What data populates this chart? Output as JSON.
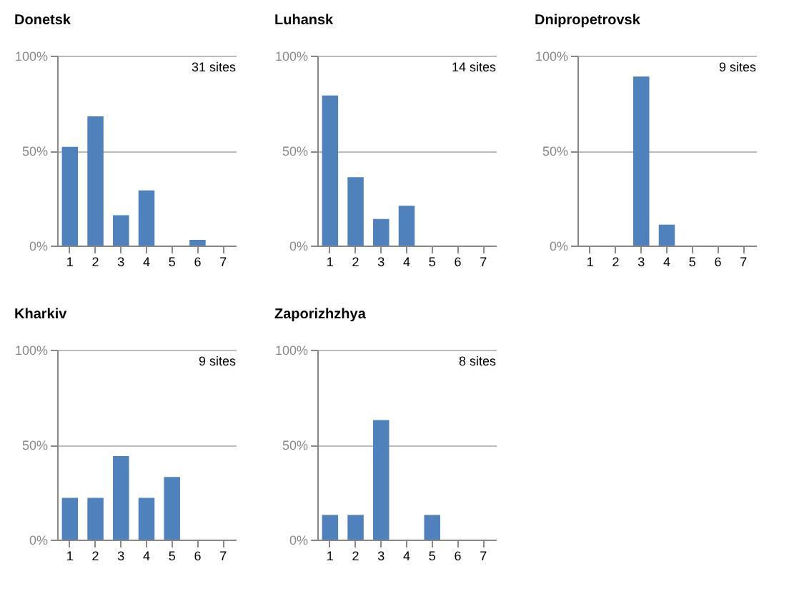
{
  "chart_data": [
    {
      "type": "bar",
      "title": "Donetsk",
      "categories": [
        "1",
        "2",
        "3",
        "4",
        "5",
        "6",
        "7"
      ],
      "values": [
        52,
        68,
        16,
        29,
        0,
        3,
        0
      ],
      "color": "#4f81bd",
      "ylim": [
        0,
        100
      ],
      "yticks": [
        {
          "value": 0,
          "label": "0%"
        },
        {
          "value": 50,
          "label": "50%"
        },
        {
          "value": 100,
          "label": "100%"
        }
      ],
      "grid": "y",
      "annotations": [
        "31 sites"
      ]
    },
    {
      "type": "bar",
      "title": "Luhansk",
      "categories": [
        "1",
        "2",
        "3",
        "4",
        "5",
        "6",
        "7"
      ],
      "values": [
        79,
        36,
        14,
        21,
        0,
        0,
        0
      ],
      "color": "#4f81bd",
      "ylim": [
        0,
        100
      ],
      "yticks": [
        {
          "value": 0,
          "label": "0%"
        },
        {
          "value": 50,
          "label": "50%"
        },
        {
          "value": 100,
          "label": "100%"
        }
      ],
      "grid": "y",
      "annotations": [
        "14 sites"
      ]
    },
    {
      "type": "bar",
      "title": "Dnipropetrovsk",
      "categories": [
        "1",
        "2",
        "3",
        "4",
        "5",
        "6",
        "7"
      ],
      "values": [
        0,
        0,
        89,
        11,
        0,
        0,
        0
      ],
      "color": "#4f81bd",
      "ylim": [
        0,
        100
      ],
      "yticks": [
        {
          "value": 0,
          "label": "0%"
        },
        {
          "value": 50,
          "label": "50%"
        },
        {
          "value": 100,
          "label": "100%"
        }
      ],
      "grid": "y",
      "annotations": [
        "9 sites"
      ]
    },
    {
      "type": "bar",
      "title": "Kharkiv",
      "categories": [
        "1",
        "2",
        "3",
        "4",
        "5",
        "6",
        "7"
      ],
      "values": [
        22,
        22,
        44,
        22,
        33,
        0,
        0
      ],
      "color": "#4f81bd",
      "ylim": [
        0,
        100
      ],
      "yticks": [
        {
          "value": 0,
          "label": "0%"
        },
        {
          "value": 50,
          "label": "50%"
        },
        {
          "value": 100,
          "label": "100%"
        }
      ],
      "grid": "y",
      "annotations": [
        "9 sites"
      ]
    },
    {
      "type": "bar",
      "title": "Zaporizhzhya",
      "categories": [
        "1",
        "2",
        "3",
        "4",
        "5",
        "6",
        "7"
      ],
      "values": [
        13,
        13,
        63,
        0,
        13,
        0,
        0
      ],
      "color": "#4f81bd",
      "ylim": [
        0,
        100
      ],
      "yticks": [
        {
          "value": 0,
          "label": "0%"
        },
        {
          "value": 50,
          "label": "50%"
        },
        {
          "value": 100,
          "label": "100%"
        }
      ],
      "grid": "y",
      "annotations": [
        "8 sites"
      ]
    }
  ]
}
